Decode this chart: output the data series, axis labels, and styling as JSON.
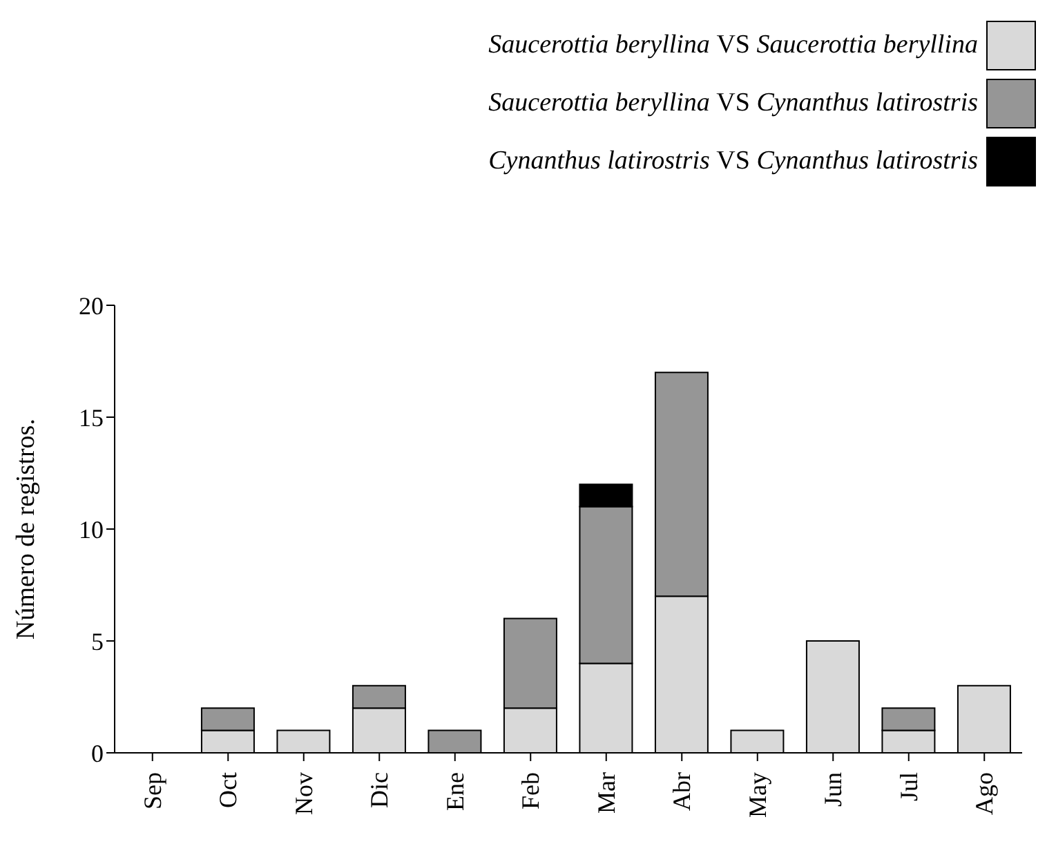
{
  "chart_data": {
    "type": "bar",
    "stacked": true,
    "ylabel": "Número de registros.",
    "categories": [
      "Sep",
      "Oct",
      "Nov",
      "Dic",
      "Ene",
      "Feb",
      "Mar",
      "Abr",
      "May",
      "Jun",
      "Jul",
      "Ago"
    ],
    "series": [
      {
        "name": "Saucerottia beryllina VS Saucerottia beryllina",
        "color": "#d9d9d9",
        "values": [
          0,
          1,
          1,
          2,
          0,
          2,
          4,
          7,
          1,
          5,
          1,
          3
        ]
      },
      {
        "name": "Saucerottia beryllina VS Cynanthus latirostris",
        "color": "#969696",
        "values": [
          0,
          1,
          0,
          1,
          1,
          4,
          7,
          10,
          0,
          0,
          1,
          0
        ]
      },
      {
        "name": "Cynanthus latirostris VS Cynanthus latirostris",
        "color": "#000000",
        "values": [
          0,
          0,
          0,
          0,
          0,
          0,
          1,
          0,
          0,
          0,
          0,
          0
        ]
      }
    ],
    "ylim": [
      0,
      20
    ],
    "yticks": [
      0,
      5,
      10,
      15,
      20
    ],
    "grid": false,
    "legend": "top right"
  }
}
